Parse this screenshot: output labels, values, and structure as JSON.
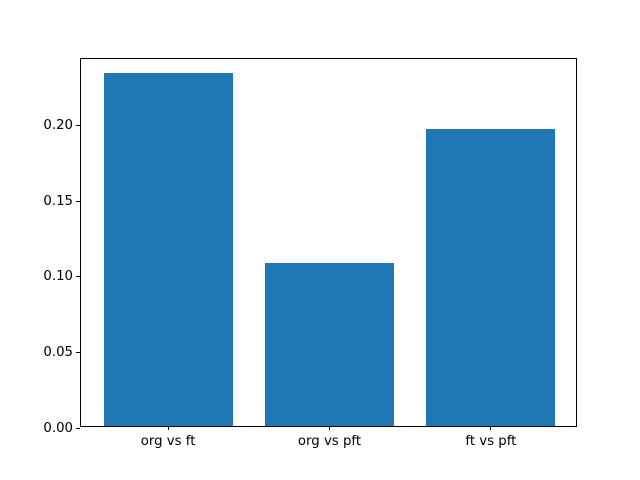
{
  "chart_data": {
    "type": "bar",
    "title": "",
    "xlabel": "",
    "ylabel": "",
    "categories": [
      "org vs ft",
      "org vs pft",
      "ft vs pft"
    ],
    "values": [
      0.233,
      0.108,
      0.196
    ],
    "yticks": [
      0.0,
      0.05,
      0.1,
      0.15,
      0.2
    ],
    "ytick_labels": [
      "0.00",
      "0.05",
      "0.10",
      "0.15",
      "0.20"
    ],
    "ylim": [
      0,
      0.2438
    ],
    "xlim": [
      -0.54,
      2.54
    ],
    "bar_width_fraction": 0.8,
    "grid": false,
    "legend": null,
    "colors": {
      "bar_fill": "#1f77b4",
      "axis": "#000000",
      "tick_label": "#000000",
      "background": "#ffffff"
    }
  }
}
